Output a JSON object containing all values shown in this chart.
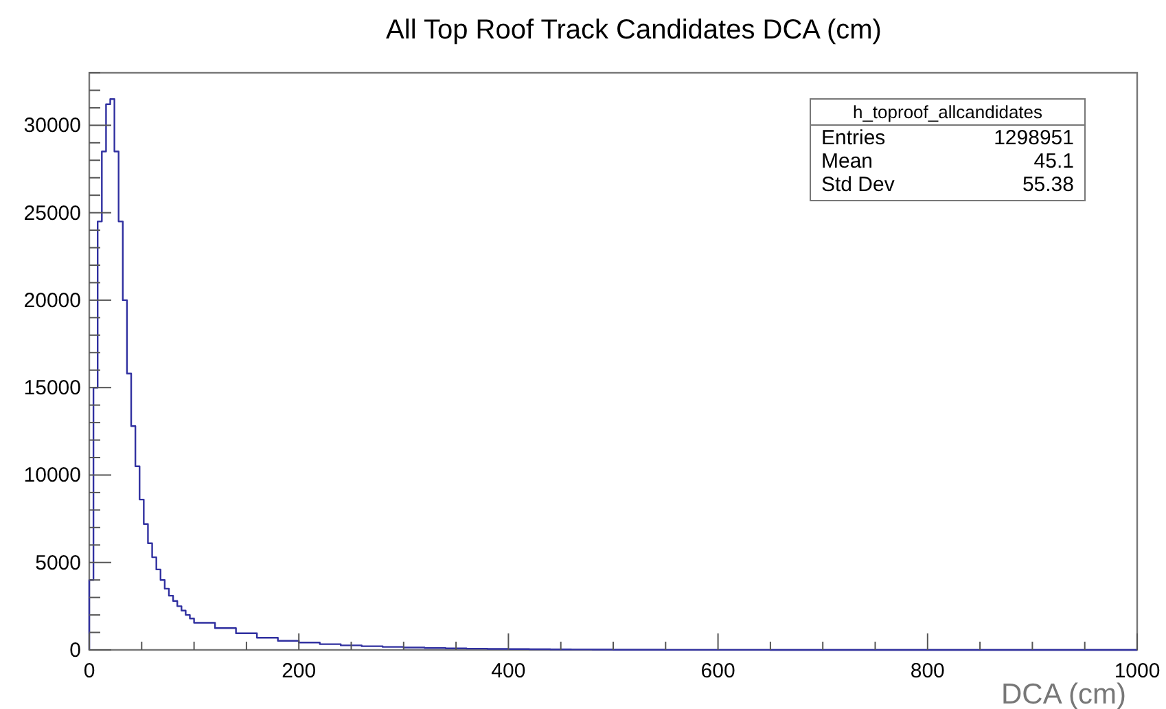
{
  "chart_data": {
    "type": "histogram",
    "title": "All Top Roof Track Candidates DCA (cm)",
    "xlabel": "DCA (cm)",
    "bins": [
      0,
      4,
      8,
      12,
      16,
      20,
      24,
      28,
      32,
      36,
      40,
      44,
      48,
      52,
      56,
      60,
      64,
      68,
      72,
      76,
      80,
      84,
      88,
      92,
      96,
      100,
      120,
      140,
      160,
      180,
      200,
      220,
      240,
      260,
      280,
      300,
      320,
      340,
      360,
      380,
      400,
      420,
      440,
      460,
      480,
      500,
      550,
      600,
      650,
      700,
      750,
      800,
      850,
      900,
      950,
      1000
    ],
    "values": [
      4000,
      15000,
      24500,
      28500,
      31200,
      31500,
      28500,
      24500,
      20000,
      15800,
      12800,
      10500,
      8600,
      7200,
      6100,
      5300,
      4600,
      4000,
      3500,
      3100,
      2800,
      2500,
      2250,
      2000,
      1800,
      1550,
      1250,
      950,
      700,
      520,
      420,
      330,
      260,
      210,
      170,
      140,
      110,
      90,
      75,
      60,
      50,
      40,
      30,
      25,
      20,
      10,
      5,
      3,
      2,
      1,
      1,
      0,
      0,
      0,
      0
    ],
    "color": "#3030a0",
    "xlim": [
      0,
      1000
    ],
    "xticks": [
      0,
      {
        "value": 50,
        "label": null
      },
      {
        "value": 100,
        "label": null
      },
      {
        "value": 150,
        "label": null
      },
      200,
      {
        "value": 250,
        "label": null
      },
      {
        "value": 300,
        "label": null
      },
      {
        "value": 350,
        "label": null
      },
      400,
      {
        "value": 450,
        "label": null
      },
      {
        "value": 500,
        "label": null
      },
      {
        "value": 550,
        "label": null
      },
      600,
      {
        "value": 650,
        "label": null
      },
      {
        "value": 700,
        "label": null
      },
      {
        "value": 750,
        "label": null
      },
      800,
      {
        "value": 850,
        "label": null
      },
      {
        "value": 900,
        "label": null
      },
      {
        "value": 950,
        "label": null
      },
      1000
    ],
    "ylim": [
      0,
      33000
    ],
    "yticks": [
      0,
      {
        "value": 1000,
        "label": null
      },
      {
        "value": 2000,
        "label": null
      },
      {
        "value": 3000,
        "label": null
      },
      {
        "value": 4000,
        "label": null
      },
      5000,
      {
        "value": 6000,
        "label": null
      },
      {
        "value": 7000,
        "label": null
      },
      {
        "value": 8000,
        "label": null
      },
      {
        "value": 9000,
        "label": null
      },
      10000,
      {
        "value": 11000,
        "label": null
      },
      {
        "value": 12000,
        "label": null
      },
      {
        "value": 13000,
        "label": null
      },
      {
        "value": 14000,
        "label": null
      },
      15000,
      {
        "value": 16000,
        "label": null
      },
      {
        "value": 17000,
        "label": null
      },
      {
        "value": 18000,
        "label": null
      },
      {
        "value": 19000,
        "label": null
      },
      20000,
      {
        "value": 21000,
        "label": null
      },
      {
        "value": 22000,
        "label": null
      },
      {
        "value": 23000,
        "label": null
      },
      {
        "value": 24000,
        "label": null
      },
      25000,
      {
        "value": 26000,
        "label": null
      },
      {
        "value": 27000,
        "label": null
      },
      {
        "value": 28000,
        "label": null
      },
      {
        "value": 29000,
        "label": null
      },
      30000,
      {
        "value": 31000,
        "label": null
      },
      {
        "value": 32000,
        "label": null
      },
      {
        "value": 33000,
        "label": null
      }
    ],
    "annotations": [
      "h_toproof_allcandidates",
      "Entries",
      "1298951",
      "Mean",
      "45.1",
      "Std Dev",
      "55.38"
    ]
  }
}
